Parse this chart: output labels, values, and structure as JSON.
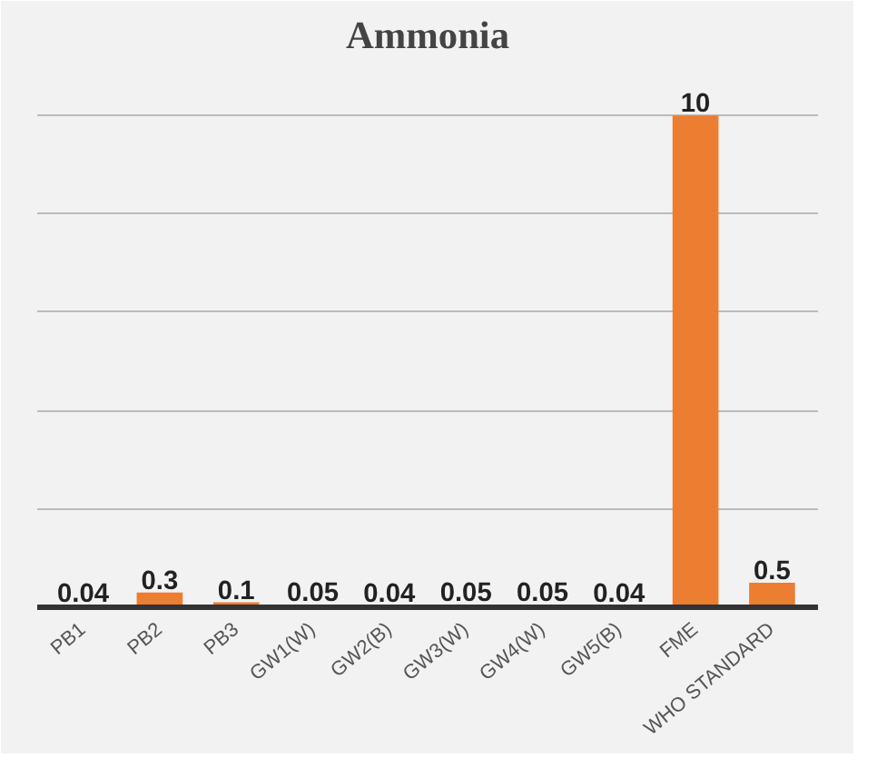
{
  "chart_data": {
    "type": "bar",
    "title": "Ammonia",
    "categories": [
      "PB1",
      "PB2",
      "PB3",
      "GW1(W)",
      "GW2(B)",
      "GW3(W)",
      "GW4(W)",
      "GW5(B)",
      "FME",
      "WHO STANDARD"
    ],
    "values": [
      0.04,
      0.3,
      0.1,
      0.05,
      0.04,
      0.05,
      0.05,
      0.04,
      10,
      0.5
    ],
    "color": "#ed7d31",
    "ylim": [
      0,
      11
    ],
    "yticks": [
      {
        "value": 0,
        "label": null
      },
      {
        "value": 2,
        "label": null
      },
      {
        "value": 4,
        "label": null
      },
      {
        "value": 6,
        "label": null
      },
      {
        "value": 8,
        "label": null
      },
      {
        "value": 10,
        "label": null
      }
    ],
    "grid": "y",
    "tick_labels": "x",
    "data_labels": true
  }
}
